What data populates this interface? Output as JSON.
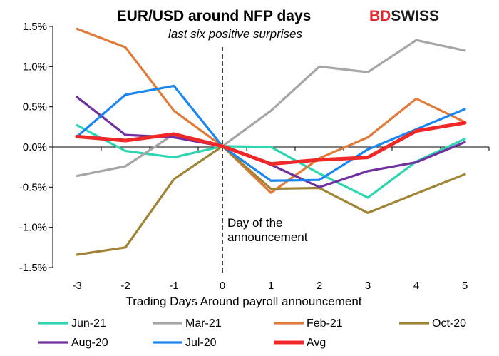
{
  "logo": {
    "part1": "BD",
    "part2": "SWISS"
  },
  "chart_data": {
    "type": "line",
    "title": "EUR/USD around NFP days",
    "subtitle": "last six positive surprises",
    "xlabel": "Trading Days Around payroll announcement",
    "ylabel": "",
    "x": [
      -3,
      -2,
      -1,
      0,
      1,
      2,
      3,
      4,
      5
    ],
    "x_tick_labels": [
      "-3",
      "-2",
      "-1",
      "0",
      "1",
      "2",
      "3",
      "4",
      "5"
    ],
    "ylim": [
      -1.5,
      1.5
    ],
    "y_ticks": [
      -1.5,
      -1.0,
      -0.5,
      0.0,
      0.5,
      1.0,
      1.5
    ],
    "y_tick_labels": [
      "-1.5%",
      "-1.0%",
      "-0.5%",
      "0.0%",
      "0.5%",
      "1.0%",
      "1.5%"
    ],
    "grid": false,
    "legend_position": "bottom",
    "annotation": {
      "x": 0,
      "line1": "Day of the",
      "line2": "announcement"
    },
    "series": [
      {
        "name": "Jun-21",
        "color": "#2fd5b0",
        "values": [
          0.27,
          -0.05,
          -0.13,
          0.01,
          0.0,
          -0.33,
          -0.63,
          -0.18,
          0.1
        ]
      },
      {
        "name": "Mar-21",
        "color": "#a6a6a6",
        "values": [
          -0.36,
          -0.24,
          0.16,
          0.01,
          0.45,
          1.0,
          0.93,
          1.33,
          1.2
        ]
      },
      {
        "name": "Feb-21",
        "color": "#e07b39",
        "values": [
          1.47,
          1.24,
          0.45,
          0.01,
          -0.57,
          -0.14,
          0.12,
          0.6,
          0.31
        ]
      },
      {
        "name": "Oct-20",
        "color": "#a08435",
        "values": [
          -1.34,
          -1.25,
          -0.4,
          0.01,
          -0.52,
          -0.51,
          -0.82,
          -0.58,
          -0.34
        ]
      },
      {
        "name": "Aug-20",
        "color": "#7030a0",
        "values": [
          0.62,
          0.15,
          0.12,
          0.01,
          -0.22,
          -0.5,
          -0.3,
          -0.19,
          0.06
        ]
      },
      {
        "name": "Jul-20",
        "color": "#1a86f0",
        "values": [
          0.13,
          0.65,
          0.76,
          0.01,
          -0.42,
          -0.41,
          -0.03,
          0.22,
          0.47
        ]
      },
      {
        "name": "Avg",
        "color": "#f02828",
        "values": [
          0.13,
          0.08,
          0.16,
          0.01,
          -0.21,
          -0.16,
          -0.13,
          0.2,
          0.3
        ]
      }
    ]
  }
}
